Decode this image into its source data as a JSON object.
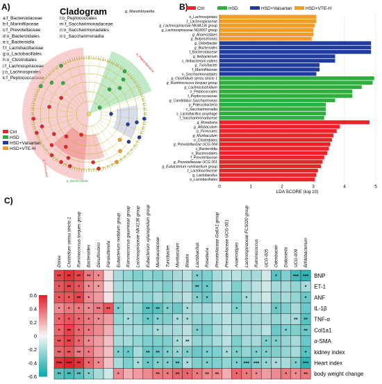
{
  "panel_labels": {
    "a": "A)",
    "b": "B)",
    "c": "C)"
  },
  "cladogram": {
    "title": "Cladogram",
    "top_label": "g_Marvinbryantia",
    "legend_left": [
      {
        "code": "a",
        "name": "f_Bacteroidaceae"
      },
      {
        "code": "b",
        "name": "f_Marinifilaceae"
      },
      {
        "code": "c",
        "name": "f_Prevotellaceae"
      },
      {
        "code": "d",
        "name": "o_Bacteroidales"
      },
      {
        "code": "e",
        "name": "c_Bacteroidia"
      },
      {
        "code": "f",
        "name": "f_Lactobacillaceae"
      },
      {
        "code": "g",
        "name": "o_Lactobacillales"
      },
      {
        "code": "h",
        "name": "o_Clostridiales"
      },
      {
        "code": "i",
        "name": "f_Lachnospiraceae"
      },
      {
        "code": "j",
        "name": "o_Lachnospirales"
      },
      {
        "code": "k",
        "name": "f_Peptococcaceae"
      }
    ],
    "legend_right": [
      {
        "code": "l",
        "name": "o_Peptococcales"
      },
      {
        "code": "m",
        "name": "f_Saccharimonadaceae"
      },
      {
        "code": "n",
        "name": "o_Saccharimonadales"
      },
      {
        "code": "o",
        "name": "c_Saccharimonadia"
      }
    ],
    "groups": [
      {
        "name": "Ctrl",
        "color": "#e8262a"
      },
      {
        "name": "HSD",
        "color": "#2fae3d"
      },
      {
        "name": "HSD+Valsartan",
        "color": "#1f3c9e"
      },
      {
        "name": "HSD+VTE-H",
        "color": "#f39c28"
      }
    ],
    "arc_labels": [
      "p_Firmicutes",
      "p_Bacteroidota",
      "p_Patescibacteria"
    ]
  },
  "chart_data": [
    {
      "type": "bar",
      "orientation": "horizontal",
      "title": "",
      "xlabel": "LDA SCORE (log 10)",
      "xlim": [
        0,
        5
      ],
      "xticks": [
        0,
        1,
        2,
        3,
        4,
        5
      ],
      "legend": [
        "Ctrl",
        "HSD",
        "HSD+Valsartan",
        "HSD+VTE-H"
      ],
      "legend_position": "top",
      "grid": true,
      "bars": [
        {
          "label": "o_Lachnospirales",
          "value": 3.1,
          "group": "HSD+VTE-H"
        },
        {
          "label": "f_Lachnospiraceae",
          "value": 3.1,
          "group": "HSD+VTE-H"
        },
        {
          "label": "g_Lachnospiraceae NK4A136 group",
          "value": 3.05,
          "group": "HSD+VTE-H"
        },
        {
          "label": "g_Lachnospiraceae ND3007 group",
          "value": 3.0,
          "group": "HSD+VTE-H"
        },
        {
          "label": "g_Anaerostipes",
          "value": 3.0,
          "group": "HSD+VTE-H"
        },
        {
          "label": "g_Butyricimonas",
          "value": 2.95,
          "group": "HSD+VTE-H"
        },
        {
          "label": "g_Odoribacter",
          "value": 4.85,
          "group": "HSD+Valsartan"
        },
        {
          "label": "g_Bacteroides",
          "value": 4.85,
          "group": "HSD+Valsartan"
        },
        {
          "label": "f_Bacteroidaceae",
          "value": 4.85,
          "group": "HSD+Valsartan"
        },
        {
          "label": "g_Ileibacterium",
          "value": 3.7,
          "group": "HSD+Valsartan"
        },
        {
          "label": "s_Ileibacterium valens",
          "value": 3.7,
          "group": "HSD+Valsartan"
        },
        {
          "label": "g_Turicibacter",
          "value": 3.2,
          "group": "HSD+Valsartan"
        },
        {
          "label": "f_Marinifilaceae",
          "value": 3.2,
          "group": "HSD+Valsartan"
        },
        {
          "label": "o_Saccharimonadales",
          "value": 3.1,
          "group": "HSD+Valsartan"
        },
        {
          "label": "g_Clostridium sensu stricto 1",
          "value": 4.95,
          "group": "HSD"
        },
        {
          "label": "g_Ruminococcus torques group",
          "value": 4.9,
          "group": "HSD"
        },
        {
          "label": "g_Lachnoclostridium",
          "value": 4.55,
          "group": "HSD"
        },
        {
          "label": "o_Peptococcales",
          "value": 4.25,
          "group": "HSD"
        },
        {
          "label": "f_Peptococcaceae",
          "value": 4.25,
          "group": "HSD"
        },
        {
          "label": "g_Candidatus Saccharimonas",
          "value": 3.7,
          "group": "HSD"
        },
        {
          "label": "p_Patescibacteria",
          "value": 3.4,
          "group": "HSD"
        },
        {
          "label": "c_Saccharimonadia",
          "value": 3.4,
          "group": "HSD"
        },
        {
          "label": "s_Lactobacillus prophage",
          "value": 3.4,
          "group": "HSD"
        },
        {
          "label": "f_Saccharimonadaceae",
          "value": 3.35,
          "group": "HSD"
        },
        {
          "label": "g_Roseburia",
          "value": 4.8,
          "group": "Ctrl"
        },
        {
          "label": "g_Allobaculum",
          "value": 3.85,
          "group": "Ctrl"
        },
        {
          "label": "p_Firmicutes",
          "value": 3.75,
          "group": "Ctrl"
        },
        {
          "label": "g_Muribaculum",
          "value": 3.65,
          "group": "Ctrl"
        },
        {
          "label": "o_Clostridiales",
          "value": 3.6,
          "group": "Ctrl"
        },
        {
          "label": "g_Prevotellaceae UCG 004",
          "value": 3.55,
          "group": "Ctrl"
        },
        {
          "label": "c_Bacteroidia",
          "value": 3.5,
          "group": "Ctrl"
        },
        {
          "label": "o_Bacteroidales",
          "value": 3.45,
          "group": "Ctrl"
        },
        {
          "label": "f_Prevotellaceae",
          "value": 3.35,
          "group": "Ctrl"
        },
        {
          "label": "g_Prevotellaceae UCG 001",
          "value": 3.3,
          "group": "Ctrl"
        },
        {
          "label": "g_Eubacterium ruminantium group",
          "value": 3.25,
          "group": "Ctrl"
        },
        {
          "label": "f_Lactobacillaceae",
          "value": 3.15,
          "group": "Ctrl"
        },
        {
          "label": "g_Lactobacillus",
          "value": 3.1,
          "group": "Ctrl"
        },
        {
          "label": "o_Lactobacillales",
          "value": 3.05,
          "group": "Ctrl"
        }
      ]
    },
    {
      "type": "heatmap",
      "title": "",
      "columns": [
        "Dorea",
        "Clostridium sensu stricto 1",
        "Ruminococcus torques group",
        "Bacteroides",
        "Desulfovibrio",
        "Parasutterella",
        "Eubacterium nodatum group",
        "Ruminococcus gauvreauii group",
        "Lachnospiraceae NK4136 group",
        "Eubacterium xylanophilum group",
        "Muribaculaceae",
        "Turicibacter",
        "Muribaculum",
        "Blautia",
        "Lactobacillus",
        "Roseburia",
        "Prevotellaceae Ga6A1 group",
        "Prevotellaceae UCG-001",
        "Anaerostipes",
        "Lachnospiraceae FCS020 group",
        "Ruminococcus",
        "UCG-005",
        "Odoribacter",
        "Dubosiella",
        "UCG-009",
        "Bifidobacterium"
      ],
      "rows": [
        "BNP",
        "ET-1",
        "ANF",
        "IL-1β",
        "TNF-α",
        "Col1a1",
        "α-SMA",
        "kidney index",
        "Heart index",
        "body weight change"
      ],
      "colorbar": {
        "min": -0.6,
        "max": 0.6,
        "ticks": [
          "0.6",
          "0.4",
          "0.2",
          "0",
          "-0.2",
          "-0.4",
          "-0.6"
        ]
      },
      "values": [
        [
          0.5,
          0.55,
          0.5,
          0.35,
          0.3,
          0.05,
          -0.2,
          -0.25,
          -0.3,
          -0.25,
          -0.3,
          -0.25,
          -0.2,
          -0.15,
          -0.3,
          -0.3,
          -0.2,
          -0.15,
          -0.15,
          -0.2,
          -0.2,
          -0.1,
          -0.4,
          -0.3,
          -0.45,
          -0.5
        ],
        [
          0.45,
          0.5,
          0.45,
          0.3,
          0.25,
          0.05,
          -0.2,
          -0.2,
          -0.25,
          -0.25,
          -0.25,
          -0.3,
          -0.2,
          -0.2,
          -0.35,
          -0.35,
          -0.2,
          -0.15,
          -0.3,
          -0.2,
          -0.15,
          -0.1,
          -0.2,
          -0.2,
          -0.25,
          -0.2
        ],
        [
          0.45,
          0.45,
          0.5,
          0.3,
          0.25,
          0.05,
          -0.2,
          -0.2,
          -0.2,
          -0.25,
          -0.2,
          -0.25,
          -0.2,
          -0.15,
          -0.3,
          -0.35,
          -0.2,
          -0.2,
          -0.3,
          -0.2,
          -0.15,
          -0.1,
          -0.25,
          -0.2,
          -0.25,
          -0.35
        ],
        [
          0.3,
          0.35,
          0.35,
          0.3,
          0.35,
          0.45,
          -0.3,
          -0.2,
          -0.25,
          -0.4,
          -0.4,
          -0.3,
          -0.35,
          -0.2,
          -0.2,
          -0.2,
          -0.15,
          -0.15,
          -0.3,
          -0.2,
          -0.2,
          -0.15,
          -0.35,
          -0.3,
          -0.2,
          -0.35
        ],
        [
          0.4,
          0.45,
          0.4,
          0.35,
          0.3,
          0.25,
          -0.25,
          -0.2,
          -0.25,
          -0.35,
          -0.3,
          -0.3,
          -0.2,
          -0.2,
          -0.25,
          -0.25,
          -0.2,
          -0.15,
          -0.2,
          -0.2,
          -0.2,
          -0.2,
          -0.25,
          -0.2,
          -0.2,
          -0.4
        ],
        [
          0.4,
          0.5,
          0.4,
          0.35,
          0.3,
          0.2,
          -0.2,
          -0.2,
          -0.2,
          -0.25,
          -0.2,
          -0.2,
          -0.2,
          -0.15,
          -0.3,
          -0.3,
          -0.2,
          -0.15,
          -0.2,
          -0.2,
          -0.2,
          -0.15,
          -0.35,
          -0.3,
          -0.3,
          -0.35
        ],
        [
          0.45,
          0.5,
          0.4,
          0.3,
          0.25,
          0.15,
          -0.2,
          -0.2,
          -0.25,
          -0.3,
          -0.3,
          -0.3,
          -0.2,
          -0.15,
          -0.25,
          -0.25,
          -0.2,
          -0.15,
          -0.3,
          -0.2,
          -0.2,
          -0.3,
          -0.3,
          -0.25,
          -0.2,
          -0.35
        ],
        [
          0.4,
          0.45,
          0.35,
          0.35,
          0.25,
          0.15,
          -0.3,
          -0.35,
          -0.2,
          -0.35,
          -0.35,
          -0.3,
          -0.25,
          -0.3,
          -0.35,
          -0.3,
          -0.3,
          -0.2,
          -0.3,
          -0.25,
          -0.3,
          -0.3,
          -0.3,
          -0.25,
          -0.2,
          -0.4
        ],
        [
          0.55,
          0.6,
          0.55,
          0.4,
          0.3,
          0.15,
          -0.2,
          -0.3,
          -0.2,
          -0.35,
          -0.3,
          -0.3,
          -0.35,
          -0.2,
          -0.3,
          -0.3,
          -0.3,
          -0.25,
          -0.3,
          -0.35,
          -0.3,
          -0.25,
          -0.2,
          -0.2,
          -0.3,
          -0.5
        ],
        [
          -0.4,
          -0.45,
          -0.4,
          -0.3,
          -0.2,
          -0.1,
          0.3,
          0.2,
          0.25,
          0.3,
          0.35,
          0.35,
          0.4,
          0.4,
          0.35,
          0.3,
          0.3,
          0.2,
          0.4,
          0.35,
          0.3,
          0.25,
          0.3,
          0.35,
          0.3,
          0.35
        ]
      ],
      "stars": [
        [
          "**",
          "**",
          "**",
          "**",
          "*",
          "",
          "",
          "",
          "",
          "",
          "",
          "",
          "",
          "",
          "*",
          "",
          "",
          "",
          "",
          "",
          "",
          "",
          "*",
          "",
          "***",
          "***"
        ],
        [
          "*",
          "**",
          "*",
          "*",
          "*",
          "",
          "",
          "",
          "",
          "",
          "",
          "",
          "",
          "",
          "**",
          "*",
          "",
          "",
          "",
          "",
          "",
          "",
          "",
          "",
          "",
          "*"
        ],
        [
          "*",
          "*",
          "**",
          "*",
          "",
          "",
          "",
          "",
          "",
          "",
          "",
          "",
          "",
          "",
          "*",
          "*",
          "",
          "",
          "",
          "*",
          "",
          "",
          "",
          "",
          "",
          "*"
        ],
        [
          "*",
          "*",
          "*",
          "*",
          "**",
          "**",
          "*",
          "",
          "",
          "**",
          "**",
          "*",
          "",
          "*",
          "",
          "",
          "",
          "",
          "*",
          "",
          "",
          "",
          "*",
          "",
          "",
          ""
        ],
        [
          "*",
          "*",
          "*",
          "*",
          "*",
          "",
          "",
          "*",
          "",
          "*",
          "*",
          "",
          "*",
          "*",
          "",
          "",
          "",
          "",
          "",
          "",
          "",
          "",
          "",
          "",
          "**",
          "**"
        ],
        [
          "*",
          "**",
          "*",
          "*",
          "",
          "",
          "",
          "",
          "",
          "",
          "*",
          "",
          "",
          "",
          "*",
          "",
          "",
          "",
          "",
          "",
          "",
          "",
          "",
          "*",
          "",
          "**"
        ],
        [
          "**",
          "**",
          "*",
          "*",
          "",
          "",
          "",
          "",
          "",
          "",
          "",
          "",
          "*",
          "**",
          "",
          "",
          "",
          "",
          "",
          "",
          "",
          "*",
          "*",
          "",
          "",
          ""
        ],
        [
          "**",
          "**",
          "**",
          "*",
          "",
          "",
          "*",
          "*",
          "",
          "**",
          "**",
          "*",
          "*",
          "*",
          "",
          "*",
          "",
          "*",
          "*",
          "",
          "*",
          "*",
          "",
          "",
          "",
          "*"
        ],
        [
          "***",
          "***",
          "**",
          "*",
          "*",
          "",
          "",
          "",
          "*",
          "*",
          "*",
          "*",
          "**",
          "*",
          "",
          "*",
          "",
          "",
          "*",
          "***",
          "***",
          "*",
          "*",
          "",
          "*",
          "***"
        ],
        [
          "**",
          "**",
          "**",
          "*",
          "",
          "",
          "*",
          "",
          "",
          "",
          "**",
          "*",
          "**",
          "*",
          "*",
          "**",
          "**",
          "",
          "*",
          "*",
          "*",
          "",
          "",
          "*",
          "*",
          "**"
        ]
      ]
    }
  ]
}
